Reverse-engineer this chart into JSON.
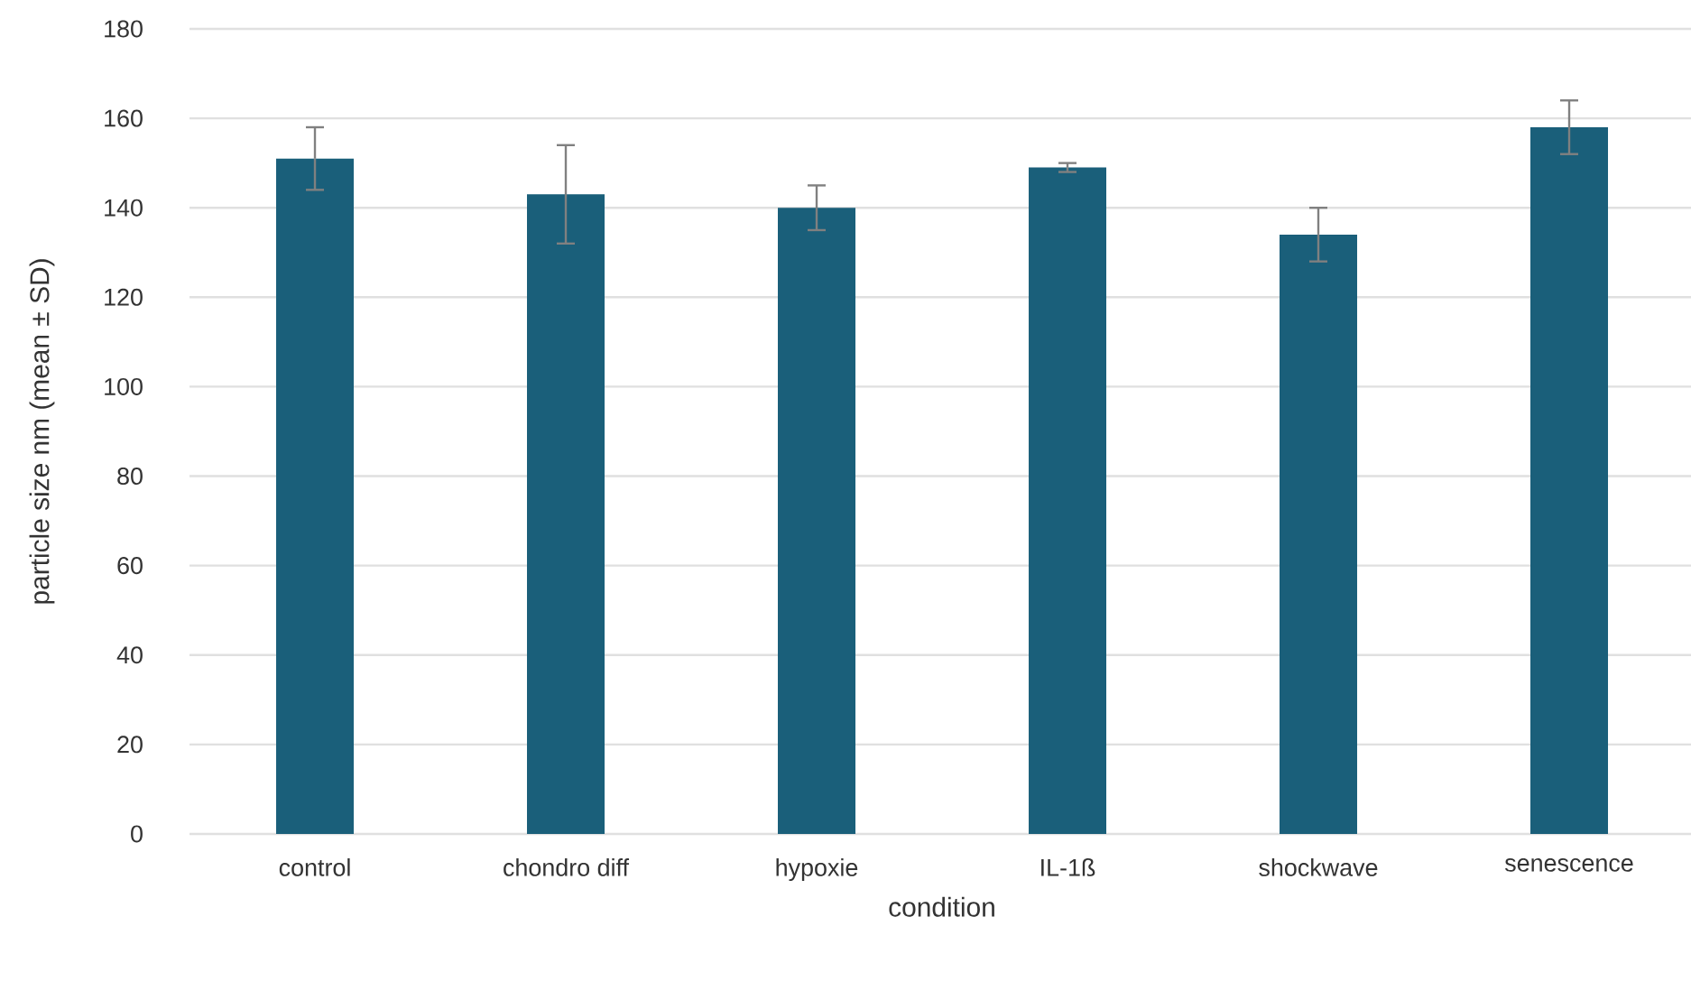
{
  "chart_data": {
    "type": "bar",
    "xlabel": "condition",
    "ylabel": "particle size nm (mean ± SD)",
    "categories": [
      "control",
      "chondro diff",
      "hypoxie",
      "IL-1ß",
      "shockwave",
      "senescence"
    ],
    "values": [
      151,
      143,
      140,
      149,
      134,
      158
    ],
    "errors": [
      7,
      11,
      5,
      1,
      6,
      6
    ],
    "color": "#1a5f7a",
    "ylim": [
      0,
      180
    ],
    "yticks": [
      0,
      20,
      40,
      60,
      80,
      100,
      120,
      140,
      160,
      180
    ],
    "grid": "y"
  }
}
